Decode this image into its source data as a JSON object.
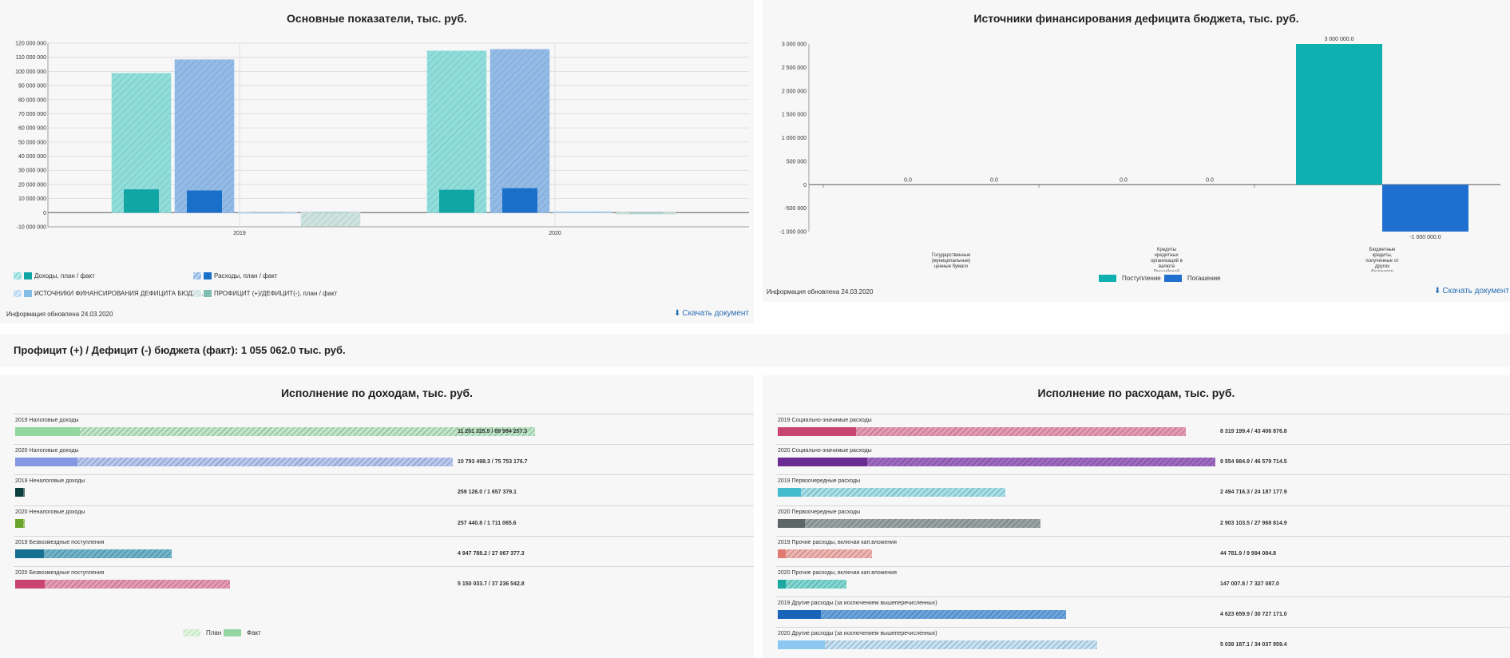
{
  "main_chart": {
    "title": "Основные показатели, тыс. руб.",
    "updated": "Информация обновлена 24.03.2020",
    "download_label": "Скачать документ",
    "legend": [
      {
        "label": "Доходы, план / факт",
        "plan_color": "#8fdedb",
        "fact_color": "#10a6a6"
      },
      {
        "label": "Расходы, план / факт",
        "plan_color": "#92bbe8",
        "fact_color": "#1a6fc9"
      },
      {
        "label": "ИСТОЧНИКИ ФИНАНСИРОВАНИЯ ДЕФИЦИТА БЮДЖ...",
        "plan_color": "#bcd9f2",
        "fact_color": "#82bde8"
      },
      {
        "label": "ПРОФИЦИТ (+)/ДЕФИЦИТ(-), план / факт",
        "plan_color": "#cde3df",
        "fact_color": "#7fbcb1"
      }
    ]
  },
  "source_chart": {
    "title": "Источники финансирования дефицита бюджета, тыс. руб.",
    "updated": "Информация обновлена 24.03.2020",
    "download_label": "Скачать документ",
    "legend": [
      {
        "label": "Поступление",
        "color": "#0fb0b0"
      },
      {
        "label": "Погашение",
        "color": "#1f6fd0"
      }
    ]
  },
  "deficit": {
    "text": "Профицит (+) / Дефицит (-) бюджета (факт): 1 055 062.0 тыс. руб."
  },
  "income": {
    "title": "Исполнение по доходам, тыс. руб.",
    "legend": [
      {
        "label": "План",
        "color": "#cdeccb"
      },
      {
        "label": "Факт",
        "color": "#93d6a1"
      }
    ],
    "rows": [
      {
        "label": "2019 Налоговые доходы",
        "value_text": "11 261 325.5 / 89 994 257.3",
        "fact": 11261325.5,
        "plan": 89994257.3,
        "plan_color": "#bfe8c8",
        "fact_color": "#93d6a1"
      },
      {
        "label": "2020 Налоговые доходы",
        "value_text": "10 793 498.3 / 75 753 176.7",
        "fact": 10793498.3,
        "plan": 75753176.7,
        "plan_color": "#b8c8f2",
        "fact_color": "#8498e3"
      },
      {
        "label": "2019 Неналоговые доходы",
        "value_text": "259 126.0 / 1 657 379.1",
        "fact": 259126.0,
        "plan": 1657379.1,
        "plan_color": "#5d7a7a",
        "fact_color": "#0b3f3f"
      },
      {
        "label": "2020 Неналоговые доходы",
        "value_text": "257 440.8 / 1 711 065.6",
        "fact": 257440.8,
        "plan": 1711065.6,
        "plan_color": "#a8d06e",
        "fact_color": "#6aa32b"
      },
      {
        "label": "2019 Безвозмездные поступления",
        "value_text": "4 947 788.2 / 27 067 377.3",
        "fact": 4947788.2,
        "plan": 27067377.3,
        "plan_color": "#6fb5cc",
        "fact_color": "#16708f"
      },
      {
        "label": "2020 Безвозмездные поступления",
        "value_text": "5 150 033.7 / 37 236 542.8",
        "fact": 5150033.7,
        "plan": 37236542.8,
        "plan_color": "#e89ab5",
        "fact_color": "#c94470"
      }
    ]
  },
  "expense": {
    "title": "Исполнение по расходам, тыс. руб.",
    "rows": [
      {
        "label": "2019 Социально-значимые расходы",
        "value_text": "8 319 199.4 / 43 406 876.8",
        "fact": 8319199.4,
        "plan": 43406876.8,
        "plan_color": "#e79ab4",
        "fact_color": "#c94470"
      },
      {
        "label": "2020 Социально-значимые расходы",
        "value_text": "9 554 984.9 / 46 579 714.5",
        "fact": 9554984.9,
        "plan": 46579714.5,
        "plan_color": "#a06ac3",
        "fact_color": "#6a2b93"
      },
      {
        "label": "2019 Первоочередные расходы",
        "value_text": "2 494 716.3 / 24 187 177.9",
        "fact": 2494716.3,
        "plan": 24187177.9,
        "plan_color": "#a6e1ea",
        "fact_color": "#45bccd"
      },
      {
        "label": "2020 Первоочередные расходы",
        "value_text": "2 903 103.5 / 27 968 814.9",
        "fact": 2903103.5,
        "plan": 27968814.9,
        "plan_color": "#9aa3a3",
        "fact_color": "#5d6767"
      },
      {
        "label": "2019 Прочие расходы, включая кап.вложения",
        "value_text": "44 781.9 / 9 994 084.8",
        "fact": 44781.9,
        "plan": 9994084.8,
        "plan_color": "#f2b4b0",
        "fact_color": "#e07a70"
      },
      {
        "label": "2020 Прочие расходы, включая кап.вложения",
        "value_text": "147 007.8 / 7 327 087.0",
        "fact": 147007.8,
        "plan": 7327087.0,
        "plan_color": "#7fd9d2",
        "fact_color": "#1aa8a0"
      },
      {
        "label": "2019 Другие расходы (за исключением вышеперечисленных)",
        "value_text": "4 623 659.9 / 30 727 171.0",
        "fact": 4623659.9,
        "plan": 30727171.0,
        "plan_color": "#6aa5df",
        "fact_color": "#1764b8"
      },
      {
        "label": "2020 Другие расходы (за исключением вышеперечисленных)",
        "value_text": "5 039 187.1 / 34 037 959.4",
        "fact": 5039187.1,
        "plan": 34037959.4,
        "plan_color": "#c5e2f7",
        "fact_color": "#8cc8f0"
      }
    ]
  },
  "chart_data": [
    {
      "type": "bar",
      "title": "Основные показатели, тыс. руб.",
      "categories": [
        "2019",
        "2020"
      ],
      "ylim": [
        -10000000,
        120000000
      ],
      "yticks": [
        "-10 000 000",
        "0",
        "10 000 000",
        "20 000 000",
        "30 000 000",
        "40 000 000",
        "50 000 000",
        "60 000 000",
        "70 000 000",
        "80 000 000",
        "90 000 000",
        "100 000 000",
        "110 000 000",
        "120 000 000"
      ],
      "series": [
        {
          "name": "Доходы, план / факт",
          "plan": [
            98700000,
            114500000
          ],
          "fact": [
            16500000,
            16200000
          ],
          "plan_color": "#8fdedb",
          "fact_color": "#10a6a6"
        },
        {
          "name": "Расходы, план / факт",
          "plan": [
            108300000,
            115600000
          ],
          "fact": [
            15700000,
            17300000
          ],
          "plan_color": "#92bbe8",
          "fact_color": "#1a6fc9"
        },
        {
          "name": "ИСТОЧНИКИ ФИНАНСИРОВАНИЯ ДЕФИЦИТА БЮДЖ...",
          "plan": [
            -500000,
            800000
          ],
          "fact": [
            0,
            0
          ],
          "plan_color": "#bcd9f2",
          "fact_color": "#82bde8"
        },
        {
          "name": "ПРОФИЦИТ (+)/ДЕФИЦИТ(-), план / факт",
          "plan": [
            -9600000,
            -1100000
          ],
          "fact": [
            500000,
            -500000
          ],
          "plan_color": "#cde3df",
          "fact_color": "#7fbcb1"
        }
      ],
      "grid": true,
      "legend": "bottom"
    },
    {
      "type": "bar",
      "title": "Источники финансирования дефицита бюджета, тыс. руб.",
      "categories": [
        "Государственные (муниципальные) ценные бумаги",
        "Кредиты кредитных организаций в валюте Российской Федерации",
        "Бюджетные кредиты, полученные от других бюджетов"
      ],
      "ylim": [
        -1000000,
        3000000
      ],
      "yticks": [
        "-1 000 000",
        "-500 000",
        "0",
        "500 000",
        "1 000 000",
        "1 500 000",
        "2 000 000",
        "2 500 000",
        "3 000 000"
      ],
      "series": [
        {
          "name": "Поступление",
          "values": [
            0.0,
            0.0,
            3000000.0
          ],
          "labels": [
            "0.0",
            "0.0",
            "3 000 000.0"
          ],
          "color": "#0fb0b0"
        },
        {
          "name": "Погашение",
          "values": [
            0.0,
            0.0,
            -1000000.0
          ],
          "labels": [
            "0.0",
            "0.0",
            "-1 000 000.0"
          ],
          "color": "#1f6fd0"
        }
      ],
      "grid": false,
      "legend": "bottom"
    }
  ]
}
